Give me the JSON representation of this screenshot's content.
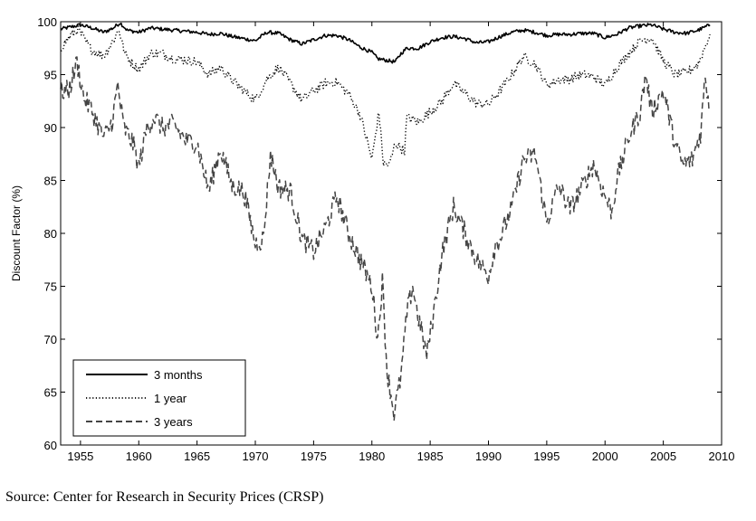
{
  "source_note": "Source: Center for Research in Security Prices (CRSP)",
  "chart_data": {
    "type": "line",
    "title": "",
    "xlabel": "",
    "ylabel": "Discount Factor (%)",
    "xlim": [
      1953.3,
      2010
    ],
    "ylim": [
      60,
      100
    ],
    "x_ticks": [
      1955,
      1960,
      1965,
      1970,
      1975,
      1980,
      1985,
      1990,
      1995,
      2000,
      2005,
      2010
    ],
    "y_ticks": [
      60,
      65,
      70,
      75,
      80,
      85,
      90,
      95,
      100
    ],
    "grid": false,
    "legend_position": "bottom-left",
    "series": [
      {
        "name": "3 months",
        "style": "solid",
        "color": "#000000",
        "points": [
          [
            1953.3,
            99.3
          ],
          [
            1955,
            99.7
          ],
          [
            1956,
            99.4
          ],
          [
            1957,
            99.0
          ],
          [
            1957.8,
            99.4
          ],
          [
            1958.4,
            99.9
          ],
          [
            1959,
            99.2
          ],
          [
            1960,
            99.0
          ],
          [
            1961,
            99.4
          ],
          [
            1962,
            99.3
          ],
          [
            1963,
            99.2
          ],
          [
            1964,
            99.1
          ],
          [
            1965,
            99.0
          ],
          [
            1966,
            98.8
          ],
          [
            1967,
            98.9
          ],
          [
            1968,
            98.6
          ],
          [
            1969,
            98.4
          ],
          [
            1970,
            98.2
          ],
          [
            1971,
            99.0
          ],
          [
            1972,
            98.9
          ],
          [
            1973,
            98.3
          ],
          [
            1974,
            97.9
          ],
          [
            1975,
            98.3
          ],
          [
            1976,
            98.7
          ],
          [
            1977,
            98.7
          ],
          [
            1978,
            98.3
          ],
          [
            1979,
            97.6
          ],
          [
            1980,
            97.1
          ],
          [
            1980.5,
            96.5
          ],
          [
            1981,
            96.4
          ],
          [
            1981.5,
            96.3
          ],
          [
            1982,
            96.2
          ],
          [
            1982.5,
            97.0
          ],
          [
            1983,
            97.5
          ],
          [
            1984,
            97.5
          ],
          [
            1985,
            98.1
          ],
          [
            1986,
            98.5
          ],
          [
            1987,
            98.6
          ],
          [
            1988,
            98.4
          ],
          [
            1989,
            98.0
          ],
          [
            1990,
            98.1
          ],
          [
            1991,
            98.6
          ],
          [
            1992,
            99.0
          ],
          [
            1993,
            99.2
          ],
          [
            1994,
            99.0
          ],
          [
            1995,
            98.7
          ],
          [
            1996,
            98.8
          ],
          [
            1997,
            98.8
          ],
          [
            1998,
            98.9
          ],
          [
            1999,
            98.9
          ],
          [
            2000,
            98.5
          ],
          [
            2001,
            98.8
          ],
          [
            2002,
            99.4
          ],
          [
            2003,
            99.6
          ],
          [
            2004,
            99.7
          ],
          [
            2005,
            99.3
          ],
          [
            2006,
            99.0
          ],
          [
            2007,
            98.9
          ],
          [
            2008,
            99.2
          ],
          [
            2009,
            99.7
          ]
        ]
      },
      {
        "name": "1 year",
        "style": "dotted",
        "color": "#000000",
        "points": [
          [
            1953.3,
            97.5
          ],
          [
            1954,
            98.5
          ],
          [
            1954.8,
            99.3
          ],
          [
            1955.5,
            98.0
          ],
          [
            1956,
            97.3
          ],
          [
            1957,
            96.8
          ],
          [
            1957.8,
            98.2
          ],
          [
            1958.3,
            99.3
          ],
          [
            1958.8,
            97.0
          ],
          [
            1959.5,
            96.0
          ],
          [
            1960,
            95.5
          ],
          [
            1961,
            97.0
          ],
          [
            1962,
            97.0
          ],
          [
            1963,
            96.5
          ],
          [
            1964,
            96.4
          ],
          [
            1965,
            96.2
          ],
          [
            1966,
            95.0
          ],
          [
            1967,
            95.7
          ],
          [
            1968,
            94.5
          ],
          [
            1969,
            93.5
          ],
          [
            1970,
            92.6
          ],
          [
            1971,
            94.6
          ],
          [
            1972,
            95.7
          ],
          [
            1973,
            94.2
          ],
          [
            1974,
            92.6
          ],
          [
            1975,
            93.5
          ],
          [
            1976,
            94.2
          ],
          [
            1977,
            94.3
          ],
          [
            1978,
            93.2
          ],
          [
            1979,
            91.2
          ],
          [
            1980,
            87.0
          ],
          [
            1980.6,
            91.5
          ],
          [
            1981,
            86.5
          ],
          [
            1981.5,
            86.5
          ],
          [
            1982,
            88.5
          ],
          [
            1982.8,
            87.8
          ],
          [
            1983,
            91.0
          ],
          [
            1984,
            90.5
          ],
          [
            1985,
            91.5
          ],
          [
            1986,
            92.5
          ],
          [
            1987,
            94.2
          ],
          [
            1988,
            93.2
          ],
          [
            1989,
            92.3
          ],
          [
            1990,
            92.2
          ],
          [
            1991,
            93.5
          ],
          [
            1992,
            95.0
          ],
          [
            1993,
            96.7
          ],
          [
            1994,
            96.0
          ],
          [
            1995,
            94.0
          ],
          [
            1996,
            94.5
          ],
          [
            1997,
            94.6
          ],
          [
            1998,
            95.0
          ],
          [
            1999,
            94.8
          ],
          [
            2000,
            94.0
          ],
          [
            2001,
            95.6
          ],
          [
            2002,
            97.0
          ],
          [
            2003,
            98.2
          ],
          [
            2004,
            98.5
          ],
          [
            2005,
            96.3
          ],
          [
            2006,
            95.0
          ],
          [
            2007,
            95.2
          ],
          [
            2008,
            96.0
          ],
          [
            2009,
            98.8
          ]
        ]
      },
      {
        "name": "3 years",
        "style": "dashed",
        "color": "#444444",
        "points": [
          [
            1953.3,
            93.4
          ],
          [
            1954,
            93.5
          ],
          [
            1954.7,
            96.2
          ],
          [
            1955.3,
            92.8
          ],
          [
            1956,
            91.5
          ],
          [
            1957,
            89.0
          ],
          [
            1957.7,
            90.5
          ],
          [
            1958.2,
            94.0
          ],
          [
            1958.7,
            90.0
          ],
          [
            1959.5,
            88.5
          ],
          [
            1960,
            86.3
          ],
          [
            1960.7,
            90.0
          ],
          [
            1961.3,
            91.0
          ],
          [
            1962,
            90.0
          ],
          [
            1963,
            90.3
          ],
          [
            1964,
            88.8
          ],
          [
            1965,
            88.5
          ],
          [
            1966,
            84.0
          ],
          [
            1967,
            88.0
          ],
          [
            1968,
            84.5
          ],
          [
            1969,
            84.0
          ],
          [
            1970,
            79.0
          ],
          [
            1970.7,
            79.5
          ],
          [
            1971.3,
            87.5
          ],
          [
            1972,
            84.3
          ],
          [
            1973,
            84.0
          ],
          [
            1974,
            79.5
          ],
          [
            1975,
            78.3
          ],
          [
            1976,
            80.5
          ],
          [
            1977,
            83.5
          ],
          [
            1978,
            80.0
          ],
          [
            1979,
            77.5
          ],
          [
            1980,
            75.0
          ],
          [
            1980.5,
            70.0
          ],
          [
            1980.9,
            75.5
          ],
          [
            1981.3,
            67.0
          ],
          [
            1981.9,
            63.0
          ],
          [
            1982.5,
            66.5
          ],
          [
            1983,
            72.5
          ],
          [
            1983.5,
            75.0
          ],
          [
            1984,
            72.0
          ],
          [
            1984.7,
            68.5
          ],
          [
            1985.3,
            72.5
          ],
          [
            1986,
            78.0
          ],
          [
            1987,
            82.5
          ],
          [
            1988,
            80.0
          ],
          [
            1989,
            77.5
          ],
          [
            1990,
            76.0
          ],
          [
            1990.6,
            79.0
          ],
          [
            1991,
            79.5
          ],
          [
            1992,
            82.5
          ],
          [
            1993,
            87.0
          ],
          [
            1994,
            87.5
          ],
          [
            1995,
            81.0
          ],
          [
            1996,
            84.5
          ],
          [
            1997,
            82.3
          ],
          [
            1998,
            84.3
          ],
          [
            1999,
            86.5
          ],
          [
            2000,
            83.5
          ],
          [
            2000.6,
            82.0
          ],
          [
            2001,
            85.0
          ],
          [
            2002,
            89.0
          ],
          [
            2003,
            91.5
          ],
          [
            2003.5,
            95.0
          ],
          [
            2004,
            91.5
          ],
          [
            2005,
            93.5
          ],
          [
            2006,
            88.5
          ],
          [
            2006.7,
            86.5
          ],
          [
            2007.5,
            87.0
          ],
          [
            2008.2,
            89.5
          ],
          [
            2008.6,
            95.0
          ],
          [
            2009,
            91.5
          ]
        ]
      }
    ]
  }
}
